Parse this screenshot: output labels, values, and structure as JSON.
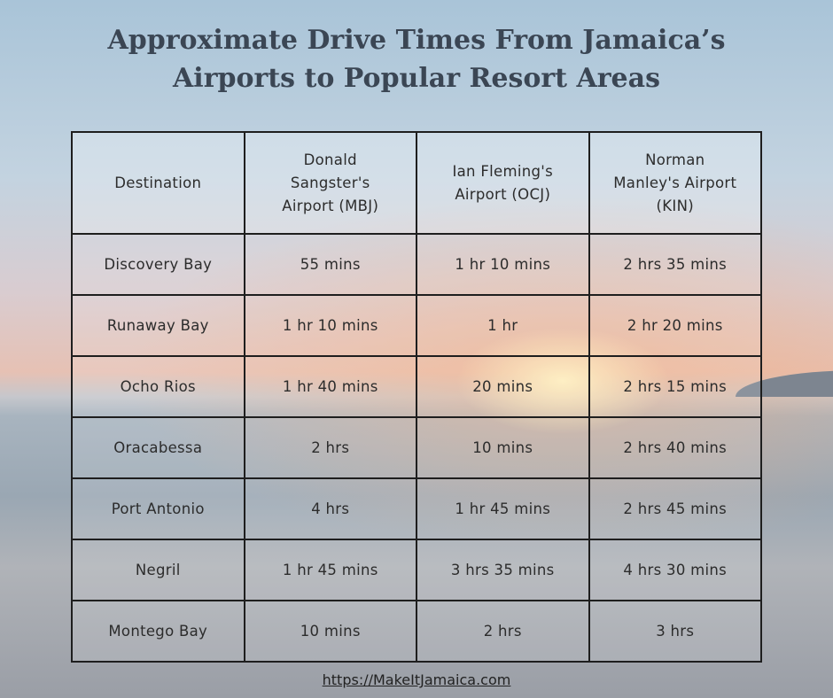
{
  "header": {
    "title": "Approximate Drive Times From Jamaica’s Airports to Popular Resort Areas"
  },
  "table": {
    "columns": [
      "Destination",
      "Donald Sangster's Airport (MBJ)",
      "Ian Fleming's Airport (OCJ)",
      "Norman Manley's Airport (KIN)"
    ],
    "rows": [
      [
        "Discovery Bay",
        "55 mins",
        "1 hr 10 mins",
        "2 hrs 35 mins"
      ],
      [
        "Runaway Bay",
        "1 hr 10 mins",
        "1 hr",
        "2 hr 20 mins"
      ],
      [
        "Ocho Rios",
        "1 hr 40 mins",
        "20 mins",
        "2 hrs 15 mins"
      ],
      [
        "Oracabessa",
        "2 hrs",
        "10 mins",
        "2 hrs 40 mins"
      ],
      [
        "Port Antonio",
        "4 hrs",
        "1 hr 45 mins",
        "2 hrs 45 mins"
      ],
      [
        "Negril",
        "1 hr 45 mins",
        "3 hrs 35 mins",
        "4 hrs 30 mins"
      ],
      [
        "Montego Bay",
        "10 mins",
        "2 hrs",
        "3 hrs"
      ]
    ]
  },
  "footer": {
    "url": "https://MakeItJamaica.com"
  }
}
